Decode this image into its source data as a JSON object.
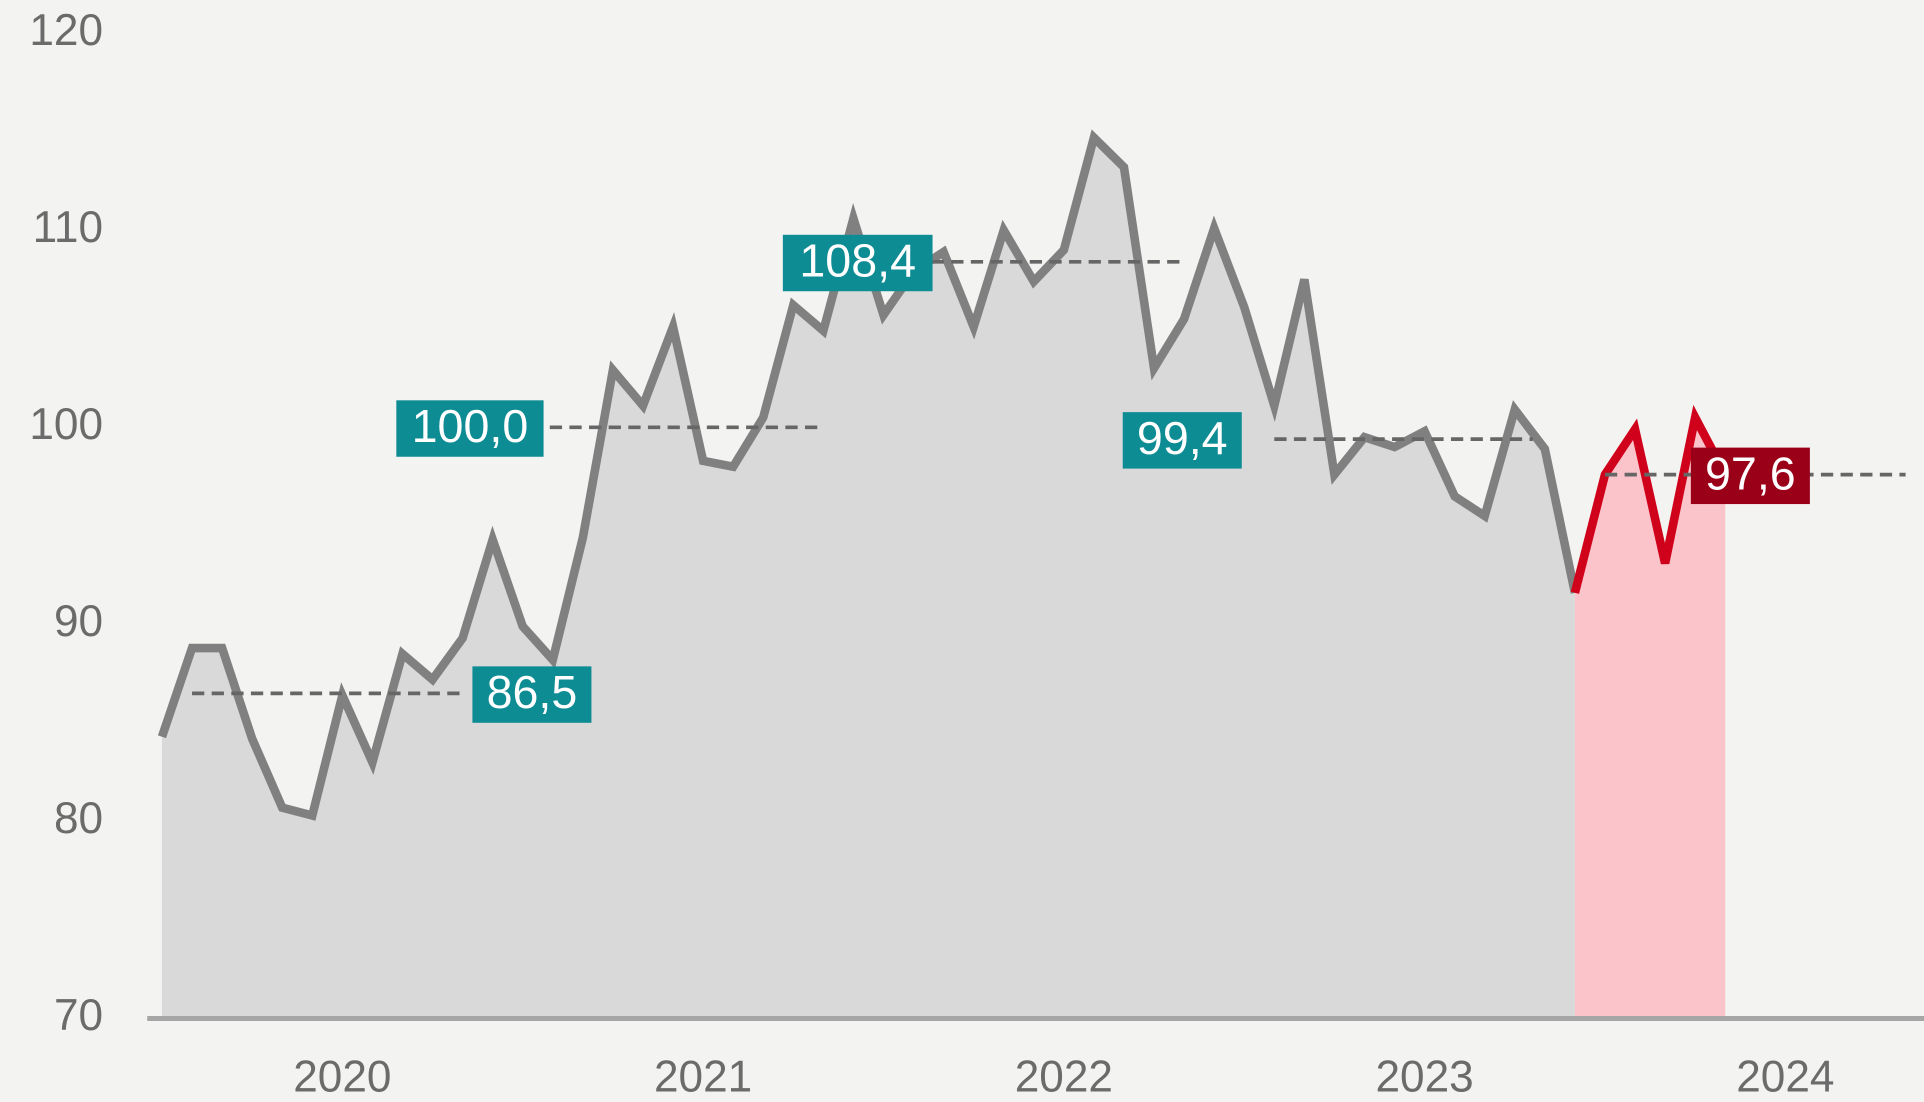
{
  "chart_data": {
    "type": "line",
    "categories": [
      null,
      null,
      null,
      null,
      null,
      null,
      "2020",
      null,
      null,
      null,
      null,
      null,
      null,
      null,
      null,
      null,
      null,
      null,
      "2021",
      null,
      null,
      null,
      null,
      null,
      null,
      null,
      null,
      null,
      null,
      null,
      "2022",
      null,
      null,
      null,
      null,
      null,
      null,
      null,
      null,
      null,
      null,
      null,
      "2023",
      null,
      null,
      null,
      null,
      null,
      null,
      null,
      null,
      null,
      null,
      null,
      "2024"
    ],
    "series": [
      {
        "color": "#808080",
        "area_color": "#d9d9d9",
        "values": [
          84.3,
          88.8,
          88.8,
          84.2,
          80.7,
          80.3,
          86.4,
          83.0,
          88.5,
          87.2,
          89.3,
          94.3,
          89.9,
          88.2,
          94.4,
          102.9,
          101.1,
          105.1,
          98.3,
          98.0,
          100.5,
          106.2,
          104.9,
          110.6,
          105.7,
          107.9,
          108.9,
          105.1,
          110.0,
          107.4,
          109.0,
          114.7,
          113.2,
          103.0,
          105.5,
          110.1,
          106.1,
          101.1,
          107.5,
          97.6,
          99.5,
          99.0,
          99.8,
          96.5,
          95.5,
          100.9,
          98.9,
          91.6,
          null,
          null,
          null,
          null,
          null,
          null,
          null
        ]
      },
      {
        "color": "#d0021b",
        "area_color": "#fbc4cb",
        "values": [
          null,
          null,
          null,
          null,
          null,
          null,
          null,
          null,
          null,
          null,
          null,
          null,
          null,
          null,
          null,
          null,
          null,
          null,
          null,
          null,
          null,
          null,
          null,
          null,
          null,
          null,
          null,
          null,
          null,
          null,
          null,
          null,
          null,
          null,
          null,
          null,
          null,
          null,
          null,
          null,
          null,
          null,
          null,
          null,
          null,
          null,
          null,
          91.6,
          97.6,
          99.9,
          93.1,
          100.5,
          97.6,
          null,
          null
        ]
      }
    ],
    "annotations": [
      {
        "value": 86.5,
        "label": "86,5",
        "color": "#0e8c94"
      },
      {
        "value": 100.0,
        "label": "100,0",
        "color": "#0e8c94"
      },
      {
        "value": 108.4,
        "label": "108,4",
        "color": "#0e8c94"
      },
      {
        "value": 99.4,
        "label": "99,4",
        "color": "#0e8c94"
      },
      {
        "value": 97.6,
        "label": "97,6",
        "color": "#9b0019"
      }
    ],
    "ylim": [
      70,
      120
    ],
    "yticks": [
      70,
      80,
      90,
      100,
      110,
      120
    ],
    "grid": false
  }
}
